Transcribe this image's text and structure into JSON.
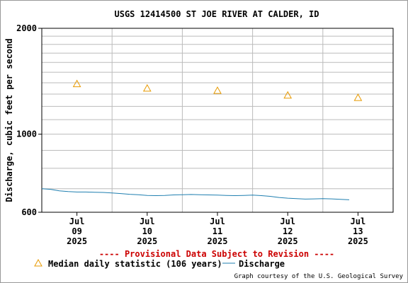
{
  "chart_data": {
    "type": "line",
    "title": "USGS 12414500 ST JOE RIVER AT CALDER, ID",
    "ylabel": "Discharge, cubic feet per second",
    "xlabel": "",
    "y_scale": "log",
    "ylim": [
      600,
      2000
    ],
    "y_ticks": [
      600,
      1000,
      2000
    ],
    "y_tick_labels": [
      "600",
      "1000",
      "2000"
    ],
    "xlim": [
      "2025-07-08 12:00",
      "2025-07-13 12:00"
    ],
    "x_ticks": [
      {
        "date": "2025-07-09",
        "line1": "Jul",
        "line2": "09",
        "line3": "2025"
      },
      {
        "date": "2025-07-10",
        "line1": "Jul",
        "line2": "10",
        "line3": "2025"
      },
      {
        "date": "2025-07-11",
        "line1": "Jul",
        "line2": "11",
        "line3": "2025"
      },
      {
        "date": "2025-07-12",
        "line1": "Jul",
        "line2": "12",
        "line3": "2025"
      },
      {
        "date": "2025-07-13",
        "line1": "Jul",
        "line2": "13",
        "line3": "2025"
      }
    ],
    "grid": true,
    "series": [
      {
        "name": "Discharge",
        "kind": "line",
        "color": "#1f7fb0",
        "x": [
          "2025-07-08 12:00",
          "2025-07-08 15:00",
          "2025-07-08 18:00",
          "2025-07-08 21:00",
          "2025-07-09 00:00",
          "2025-07-09 03:00",
          "2025-07-09 06:00",
          "2025-07-09 09:00",
          "2025-07-09 12:00",
          "2025-07-09 15:00",
          "2025-07-09 18:00",
          "2025-07-09 21:00",
          "2025-07-10 00:00",
          "2025-07-10 03:00",
          "2025-07-10 06:00",
          "2025-07-10 09:00",
          "2025-07-10 12:00",
          "2025-07-10 15:00",
          "2025-07-10 18:00",
          "2025-07-10 21:00",
          "2025-07-11 00:00",
          "2025-07-11 03:00",
          "2025-07-11 06:00",
          "2025-07-11 09:00",
          "2025-07-11 12:00",
          "2025-07-11 15:00",
          "2025-07-11 18:00",
          "2025-07-11 21:00",
          "2025-07-12 00:00",
          "2025-07-12 03:00",
          "2025-07-12 06:00",
          "2025-07-12 09:00",
          "2025-07-12 12:00",
          "2025-07-12 15:00",
          "2025-07-12 18:00",
          "2025-07-12 21:00"
        ],
        "y": [
          700,
          697,
          690,
          687,
          685,
          685,
          684,
          683,
          681,
          678,
          675,
          673,
          670,
          669,
          670,
          672,
          673,
          674,
          673,
          672,
          671,
          670,
          669,
          670,
          671,
          669,
          666,
          661,
          658,
          656,
          654,
          655,
          656,
          655,
          653,
          651
        ]
      },
      {
        "name": "Median daily statistic (106 years)",
        "kind": "marker",
        "marker": "triangle",
        "color": "#e89a00",
        "x": [
          "2025-07-09",
          "2025-07-10",
          "2025-07-11",
          "2025-07-12",
          "2025-07-13"
        ],
        "y": [
          1390,
          1350,
          1330,
          1290,
          1270
        ]
      }
    ],
    "legend_position": "bottom-left",
    "annotations": {
      "provisional": "---- Provisional Data Subject to Revision ----",
      "credit": "Graph courtesy of the U.S. Geological Survey"
    },
    "colors": {
      "provisional": "#cc0000",
      "axis": "#000000",
      "grid": "#bbbbbb"
    }
  }
}
